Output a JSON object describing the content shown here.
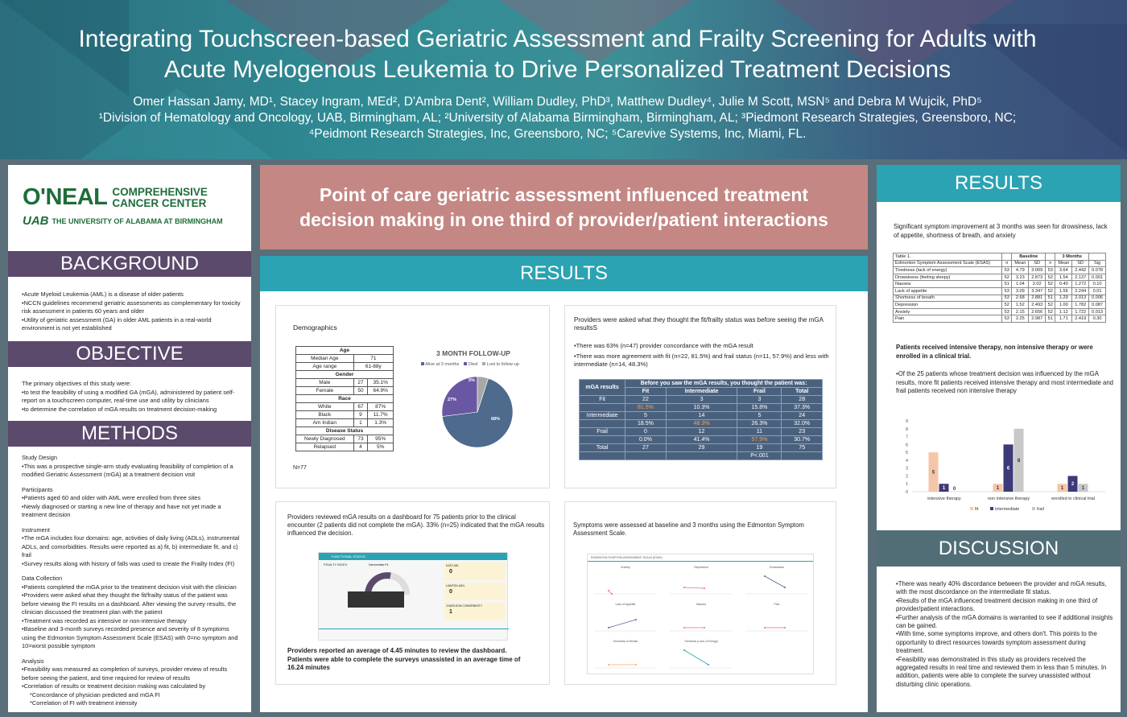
{
  "header": {
    "title_line1": "Integrating Touchscreen-based Geriatric Assessment and Frailty Screening for Adults with",
    "title_line2": "Acute Myelogenous Leukemia to Drive Personalized Treatment Decisions",
    "authors_line": "Omer Hassan Jamy, MD¹, Stacey Ingram, MEd², D'Ambra Dent², William Dudley, PhD³, Matthew Dudley⁴, Julie M Scott, MSN⁵ and Debra M Wujcik, PhD⁵",
    "affil_line1": "¹Division of Hematology and Oncology, UAB, Birmingham, AL; ²University of Alabama Birmingham, Birmingham, AL; ³Piedmont Research Strategies, Greensboro, NC;",
    "affil_line2": "⁴Peidmont Research Strategies, Inc, Greensboro, NC; ⁵Carevive Systems, Inc, Miami, FL."
  },
  "logo": {
    "oneal": "O'NEAL",
    "comprehensive": "COMPREHENSIVE",
    "cancer_center": "CANCER CENTER",
    "uab": "UAB",
    "university": "THE UNIVERSITY OF ALABAMA AT BIRMINGHAM"
  },
  "background": {
    "heading": "BACKGROUND",
    "items": [
      "•Acute Myeloid Leukemia (AML) is a disease of older patients",
      "•NCCN guidelines recommend geriatric assessments as complementary for toxicity risk assessment in patients 60 years and older",
      "•Utility of geriatric assessment (GA) in older AML patients in a real-world environment is not yet established"
    ]
  },
  "objective": {
    "heading": "OBJECTIVE",
    "intro": "The primary objectives of this study were:",
    "items": [
      "•to test the feasibility of using a modified GA (mGA), administered by patient self-report on a touchscreen computer, real-time use and utility by clinicians",
      "•to determine the correlation of mGA results on treatment decision-making"
    ]
  },
  "methods": {
    "heading": "METHODS",
    "sections": [
      {
        "title": "Study Design",
        "items": [
          "•This was a prospective single-arm study evaluating feasibility of completion of a modified Geriatric Assessment (mGA) at a treatment decision visit"
        ]
      },
      {
        "title": "Participants",
        "items": [
          "•Patients aged 60 and older with AML were enrolled from three sites",
          "•Newly diagnosed or starting a new line of therapy and have not yet made a treatment decision"
        ]
      },
      {
        "title": "Instrument",
        "items": [
          "•The mGA includes four domains: age, activities of daily living (ADLs), instrumental ADLs, and comorbidities. Results were reported as a) fit, b) intermediate fit, and c) frail",
          "•Survey results along with history of falls was used to create the Frailty Index (FI)"
        ]
      },
      {
        "title": "Data Collection",
        "items": [
          "•Patients completed the mGA prior to the treatment decision visit with the clinician",
          "•Providers were asked what they thought the fit/frailty status of the patient was before viewing the FI results on a dashboard. After viewing the survey results, the clinician discussed the treatment plan with the patient",
          "•Treatment was recorded as intensive or non-intensive therapy",
          "•Baseline and 3-month surveys recorded presence and severity of 8 symptoms using the Edmonton Symptom Assessment Scale (ESAS) with 0=no symptom and 10=worst possible symptom"
        ]
      },
      {
        "title": "Analysis",
        "items": [
          "•Feasibility was measured as completion of surveys, provider review of results before seeing the patient, and time required for review of results",
          "•Correlation of results or treatment decision making was calculated by",
          "*Concordance of physician predicted and mGA FI",
          "*Correlation of FI with treatment intensity"
        ]
      }
    ]
  },
  "headline": {
    "line1": "Point of care geriatric assessment influenced treatment",
    "line2": "decision making in one third of provider/patient interactions"
  },
  "results_mid": {
    "heading": "RESULTS",
    "demographics": {
      "title": "Demographics",
      "table": [
        [
          "Age",
          "",
          ""
        ],
        [
          "Median Age",
          "71",
          ""
        ],
        [
          "Age range",
          "61-88y",
          ""
        ],
        [
          "Gender",
          "",
          ""
        ],
        [
          "Male",
          "27",
          "35.1%"
        ],
        [
          "Female",
          "50",
          "64.9%"
        ],
        [
          "Race",
          "",
          ""
        ],
        [
          "White",
          "67",
          "87%"
        ],
        [
          "Black",
          "9",
          "11.7%"
        ],
        [
          "Am Indian",
          "1",
          "1.3%"
        ],
        [
          "Disease Status",
          "",
          ""
        ],
        [
          "Newly Diagnosed",
          "73",
          "95%"
        ],
        [
          "Relapsed",
          "4",
          "5%"
        ]
      ],
      "n": "N=77"
    },
    "followup_chart": {
      "title": "3 MONTH FOLLOW-UP",
      "legend": [
        "Alive at 3 months",
        "Died",
        "Lost to follow-up"
      ],
      "colors": [
        "#4e6a8c",
        "#6a57a4",
        "#a8a8a8"
      ],
      "values": [
        68,
        27,
        5
      ],
      "labels": [
        "68%",
        "27%",
        "5%"
      ]
    },
    "concordance": {
      "intro": "Providers were asked what they thought the fit/frailty status was before seeing the mGA resultsS",
      "bullet1": "•There was 63% (n=47) provider concordance with the mGA result",
      "bullet2": "•There was more agreement with fit (n=22, 81.5%) and frail status (n=11, 57.9%) and less with intermediate (n=14, 48.3%)",
      "table_header_left": "mGA results",
      "table_header_top": "Before you saw the mGA results, you thought the patient was:",
      "cols": [
        "Fit",
        "Intermediate",
        "Frail",
        "Total"
      ],
      "rows": [
        [
          "Fit",
          "22",
          "3",
          "3",
          "28"
        ],
        [
          "",
          "81.5%",
          "10.3%",
          "15.8%",
          "37.3%"
        ],
        [
          "Intermediate",
          "5",
          "14",
          "5",
          "24"
        ],
        [
          "",
          "18.5%",
          "48.3%",
          "26.3%",
          "32.0%"
        ],
        [
          "Frail",
          "0",
          "12",
          "11",
          "23"
        ],
        [
          "",
          "0.0%",
          "41.4%",
          "57.9%",
          "30.7%"
        ],
        [
          "Total",
          "27",
          "29",
          "19",
          "75"
        ],
        [
          "",
          "",
          "",
          "P<.001",
          ""
        ]
      ]
    },
    "dashboard": {
      "intro": "Providers reviewed mGA results on a dashboard for 75 patients prior to the clinical encounter (2 patients did not complete the mGA). 33% (n=25) indicated that the mGA results influenced the decision.",
      "bar_title": "FUNCTIONAL STATUS",
      "frailty_label": "FRAILTY INDEX",
      "gauge_label": "Intermediate Fit",
      "adl_label": "KATZ ADL",
      "adl_value": "0",
      "iadl_label": "LAWTON IADL",
      "iadl_value": "0",
      "comorb_label": "CHARLSON COMORBIDITY",
      "comorb_value": "1",
      "footer": "Providers reported an average of 4.45 minutes to review the dashboard. Patients were able to complete the surveys unassisted in an average time of 16.24 minutes"
    },
    "symptoms": {
      "intro": "Symptoms were assessed at baseline and 3 months using the Edmonton Symptom Assessment Scale.",
      "panel_title": "EDMONTON SYMPTOM ASSESSMENT SCALE (ESAS)",
      "panels": [
        "Anxiety",
        "Depression",
        "Drowsiness",
        "Lack of Appetite",
        "Nausea",
        "Pain",
        "Shortness of Breath",
        "Tiredness (Lack of Energy)"
      ]
    }
  },
  "results_right": {
    "heading": "RESULTS",
    "intro": "Significant symptom improvement at 3 months was seen for drowsiness, lack of appetite, shortness of breath, and anxiety",
    "table_title": "Table 1.",
    "group_baseline": "Baseline",
    "group_3m": "3 Months",
    "cols": [
      "Edmonton Symptom Assessment Scale (ESAS)",
      "n",
      "Mean",
      "SD",
      "n",
      "Mean",
      "SD",
      "Sig"
    ],
    "rows": [
      [
        "Tiredness (lack of energy)",
        "53",
        "4.79",
        "3.009",
        "53",
        "3.64",
        "2.442",
        "0.078"
      ],
      [
        "Drowsiness (feeling sleepy)",
        "52",
        "3.23",
        "2.873",
        "52",
        "1.54",
        "2.137",
        "0.001"
      ],
      [
        "Nausea",
        "51",
        "1.04",
        "2.02",
        "52",
        "0.40",
        "1.272",
        "0.10"
      ],
      [
        "Lack of appetite",
        "53",
        "3.09",
        "3.347",
        "52",
        "1.56",
        "2.244",
        "0.01"
      ],
      [
        "Shortness of breath",
        "53",
        "2.68",
        "2.881",
        "51",
        "1.29",
        "2.013",
        "0.006"
      ],
      [
        "Depression",
        "52",
        "1.52",
        "2.493",
        "52",
        "1.00",
        "1.782",
        "0.087"
      ],
      [
        "Anxiety",
        "53",
        "2.15",
        "2.656",
        "52",
        "1.12",
        "1.722",
        "0.013"
      ],
      [
        "Pain",
        "53",
        "2.25",
        "2.987",
        "51",
        "1.71",
        "2.419",
        "0.30"
      ]
    ],
    "treatment_intro": "Patients received intensive therapy, non intensive therapy or were enrolled in a clinical trial.",
    "treatment_bullet": "•Of the 25 patients whose treatment decision was influenced by the mGA results, more fit patients received intensive therapy and most intermediate and frail patients received non intensive therapy"
  },
  "chart_data": {
    "type": "bar",
    "categories": [
      "intensive therapy",
      "non intensive therapy",
      "enrolled in clinical trial"
    ],
    "series": [
      {
        "name": "fit",
        "values": [
          5,
          1,
          1
        ],
        "color": "#f4c6a8"
      },
      {
        "name": "intermediate",
        "values": [
          1,
          6,
          2
        ],
        "color": "#3d3a7a"
      },
      {
        "name": "frail",
        "values": [
          0,
          8,
          1
        ],
        "color": "#c8c8c8"
      }
    ],
    "ylim": [
      0,
      9
    ],
    "yticks": [
      "0",
      "1",
      "2",
      "3",
      "4",
      "5",
      "6",
      "7",
      "8",
      "9"
    ],
    "legend": "bottom"
  },
  "discussion": {
    "heading": "DISCUSSION",
    "items": [
      "•There was nearly 40% discordance between the provider and mGA results, with the most discordance on the intermediate fit status.",
      "•Results of the mGA influenced treatment decision making in one third of provider/patient interactions.",
      "•Further analysis of the mGA domains is warranted to see if additional insights can be gained.",
      "•With time, some symptoms improve, and others don't. This points to the opportunity to direct resources towards symptom assessment during treatment.",
      "•Feasibility was demonstrated in this study as providers received the aggregated results in real time and reviewed them in less than 5 minutes. In addition, patients were able to complete the survey unassisted without disturbing clinic operations."
    ]
  }
}
